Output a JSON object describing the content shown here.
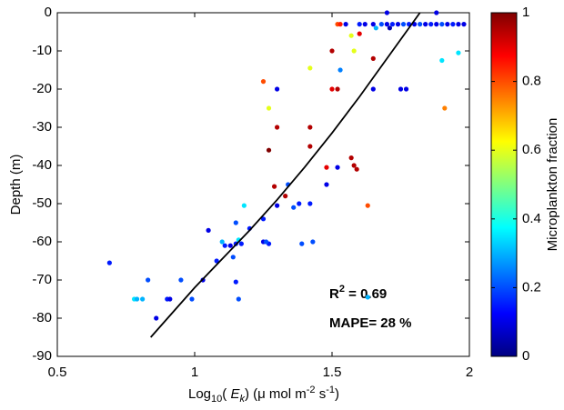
{
  "chart_data": {
    "type": "scatter",
    "ylabel": "Depth (m)",
    "xlabel_parts": [
      "Log",
      "10",
      "( ",
      "E",
      "k",
      ") (μ mol m",
      "-2",
      " s",
      "-1",
      ")"
    ],
    "colorbar_label": "Microplankton fraction",
    "annotations": [
      [
        "R",
        "2",
        " = 0.69"
      ],
      [
        "MAPE= 28 %"
      ]
    ],
    "xlim": [
      0.5,
      2
    ],
    "xticks": [
      0.5,
      1,
      1.5,
      2
    ],
    "ylim": [
      -90,
      0
    ],
    "yticks": [
      -90,
      -80,
      -70,
      -60,
      -50,
      -40,
      -30,
      -20,
      -10,
      0
    ],
    "clim": [
      0,
      1
    ],
    "cticks": [
      0,
      0.2,
      0.4,
      0.6,
      0.8,
      1
    ],
    "colormap": "jet",
    "points": {
      "x": [
        1.55,
        1.6,
        1.62,
        1.65,
        1.68,
        1.7,
        1.72,
        1.74,
        1.76,
        1.78,
        1.8,
        1.82,
        1.84,
        1.86,
        1.88,
        1.9,
        1.92,
        1.94,
        1.96,
        1.98,
        1.52,
        1.53,
        1.7,
        1.88,
        1.66,
        1.6,
        1.57,
        1.5,
        1.58,
        1.53,
        1.65,
        1.42,
        1.25,
        1.3,
        1.5,
        1.52,
        1.65,
        1.75,
        1.77,
        1.9,
        1.96,
        1.91,
        1.27,
        1.3,
        1.42,
        1.42,
        1.27,
        1.57,
        1.58,
        1.59,
        1.48,
        1.52,
        1.34,
        1.29,
        1.33,
        1.48,
        1.3,
        1.36,
        1.38,
        1.42,
        1.18,
        1.63,
        1.05,
        1.15,
        1.25,
        1.2,
        1.1,
        1.11,
        1.13,
        1.15,
        1.17,
        1.16,
        1.25,
        1.27,
        1.39,
        1.43,
        1.26,
        1.14,
        1.08,
        0.69,
        0.83,
        0.95,
        0.9,
        0.91,
        0.99,
        1.03,
        1.15,
        1.16,
        0.78,
        0.79,
        0.81,
        0.86,
        1.63,
        1.71
      ],
      "y": [
        -3,
        -3,
        -3,
        -3,
        -3,
        -3,
        -3,
        -3,
        -3,
        -3,
        -3,
        -3,
        -3,
        -3,
        -3,
        -3,
        -3,
        -3,
        -3,
        -3,
        -3,
        -3,
        0,
        0,
        -4,
        -5.5,
        -6,
        -10,
        -10,
        -15,
        -12,
        -14.5,
        -18,
        -20,
        -20,
        -20,
        -20,
        -20,
        -20,
        -12.5,
        -10.5,
        -25,
        -25,
        -30,
        -30,
        -35,
        -36,
        -38,
        -40,
        -41,
        -40.5,
        -40.5,
        -45,
        -45.5,
        -48,
        -45,
        -50.5,
        -51,
        -50,
        -50,
        -50.5,
        -50.5,
        -57,
        -55,
        -54,
        -56.5,
        -60,
        -61,
        -61,
        -60.5,
        -60.5,
        -59.5,
        -60,
        -60.5,
        -60.5,
        -60,
        -60,
        -64,
        -65,
        -65.5,
        -70,
        -70,
        -75,
        -75,
        -75,
        -70,
        -70.5,
        -75,
        -75,
        -75,
        -75,
        -80,
        -74.5,
        -4
      ],
      "c": [
        0.1,
        0.15,
        0.1,
        0.1,
        0.2,
        0.1,
        0.15,
        0.1,
        0.2,
        0.15,
        0.1,
        0.2,
        0.1,
        0.15,
        0.1,
        0.2,
        0.1,
        0.15,
        0.1,
        0.1,
        0.8,
        0.85,
        0.1,
        0.1,
        0.3,
        0.9,
        0.6,
        0.95,
        0.6,
        0.25,
        0.95,
        0.6,
        0.8,
        0.1,
        0.9,
        0.95,
        0.1,
        0.1,
        0.1,
        0.35,
        0.35,
        0.75,
        0.6,
        0.95,
        0.95,
        0.95,
        1,
        0.95,
        0.95,
        0.95,
        0.9,
        0.1,
        0.2,
        0.95,
        0.95,
        0.1,
        0.1,
        0.2,
        0.15,
        0.15,
        0.35,
        0.8,
        0.1,
        0.2,
        0.15,
        0.15,
        0.3,
        0.15,
        0.1,
        0.15,
        0.15,
        0.35,
        0.1,
        0.15,
        0.2,
        0.2,
        0.2,
        0.2,
        0.15,
        0.15,
        0.2,
        0.2,
        0.15,
        0.1,
        0.2,
        0.1,
        0.15,
        0.2,
        0.35,
        0.3,
        0.3,
        0.1,
        0.3,
        0.05
      ]
    },
    "fit": {
      "color": "#000000",
      "x": [
        0.84,
        1.0,
        1.1,
        1.2,
        1.3,
        1.4,
        1.5,
        1.6,
        1.7,
        1.82
      ],
      "y": [
        -85,
        -72,
        -64.5,
        -57,
        -49,
        -40.5,
        -31.5,
        -22,
        -12,
        0
      ]
    }
  }
}
